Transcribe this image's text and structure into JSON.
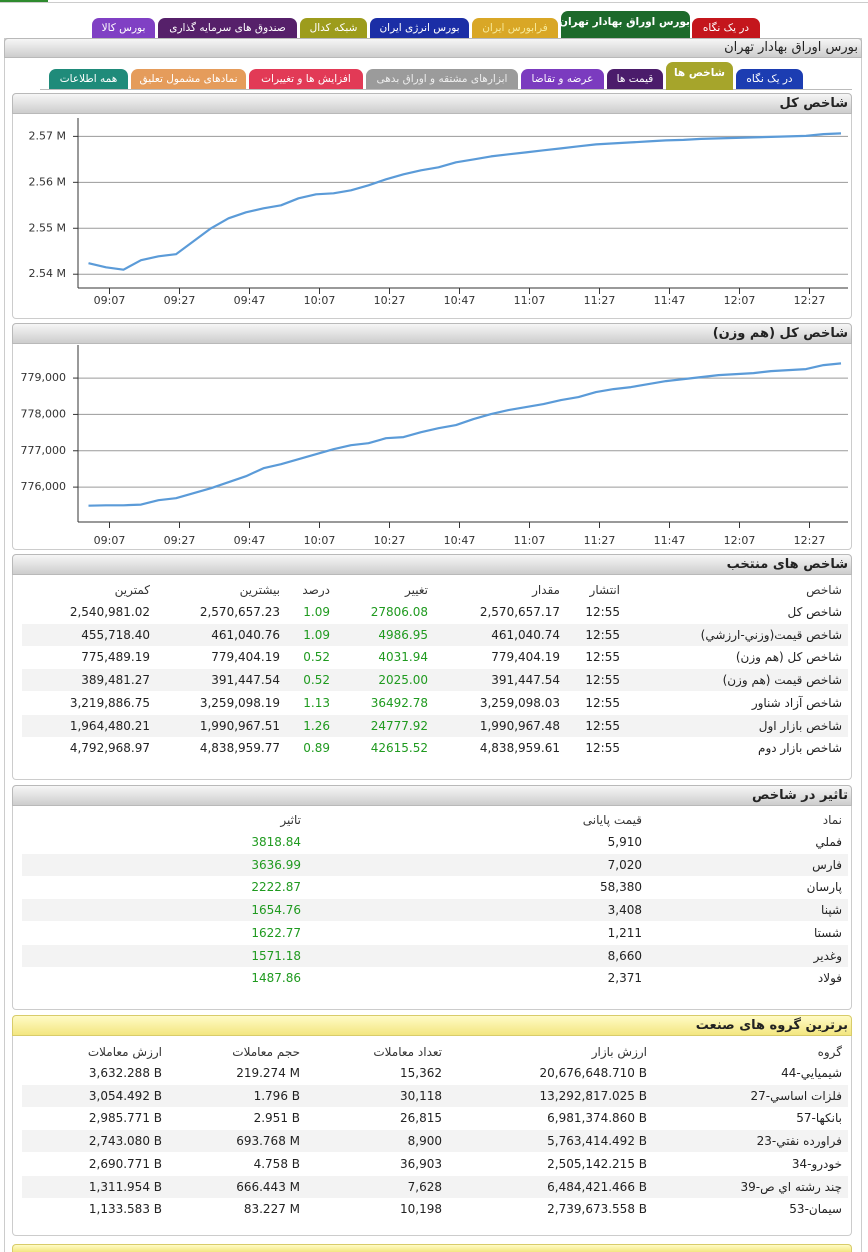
{
  "top_tabs": [
    "در یک نگاه",
    "بورس اوراق بهادار تهران",
    "فرابورس ایران",
    "بورس انرژی ایران",
    "شبکه کدال",
    "صندوق های سرمایه گذاری",
    "بورس کالا"
  ],
  "header": {
    "title": "بورس اوراق بهادار تهران"
  },
  "sub_tabs": [
    "در یک نگاه",
    "شاخص ها",
    "قیمت ها",
    "عرضه و تقاضا",
    "ابزارهای مشتقه و اوراق بدهی",
    "افزایش ها و تغییرات",
    "نمادهای مشمول تعلیق",
    "همه اطلاعات"
  ],
  "chart_data": [
    {
      "type": "line",
      "title": "شاخص کل",
      "color": "#5b9bd8",
      "grid": true,
      "x": [
        "09:01",
        "09:06",
        "09:11",
        "09:16",
        "09:21",
        "09:26",
        "09:31",
        "09:36",
        "09:41",
        "09:46",
        "09:51",
        "09:56",
        "10:01",
        "10:06",
        "10:11",
        "10:16",
        "10:21",
        "10:26",
        "10:31",
        "10:36",
        "10:41",
        "10:46",
        "10:51",
        "10:56",
        "11:01",
        "11:06",
        "11:11",
        "11:16",
        "11:21",
        "11:26",
        "11:31",
        "11:36",
        "11:41",
        "11:46",
        "11:51",
        "11:56",
        "12:01",
        "12:06",
        "12:11",
        "12:16",
        "12:21",
        "12:26",
        "12:31",
        "12:36"
      ],
      "values": [
        2542400,
        2541500,
        2540981,
        2543040,
        2543910,
        2544350,
        2547170,
        2550000,
        2552170,
        2553480,
        2554350,
        2555000,
        2556520,
        2557390,
        2557610,
        2558260,
        2559350,
        2560650,
        2561740,
        2562610,
        2563260,
        2564350,
        2565000,
        2565650,
        2566090,
        2566520,
        2566960,
        2567390,
        2567830,
        2568260,
        2568480,
        2568700,
        2568910,
        2569130,
        2569240,
        2569460,
        2569570,
        2569670,
        2569780,
        2569890,
        2570000,
        2570110,
        2570500,
        2570657
      ],
      "xlim": [
        "08:58",
        "12:38"
      ],
      "xticks": [
        "09:07",
        "09:27",
        "09:47",
        "10:07",
        "10:27",
        "10:47",
        "11:07",
        "11:27",
        "11:47",
        "12:07",
        "12:27"
      ],
      "ylim": [
        2537000,
        2574000
      ],
      "yticks": [
        {
          "value": 2540000,
          "label": "2.54 M"
        },
        {
          "value": 2550000,
          "label": "2.55 M"
        },
        {
          "value": 2560000,
          "label": "2.56 M"
        },
        {
          "value": 2570000,
          "label": "2.57 M"
        }
      ]
    },
    {
      "type": "line",
      "title": "شاخص کل (هم وزن)",
      "color": "#5b9bd8",
      "grid": true,
      "x": [
        "09:01",
        "09:06",
        "09:11",
        "09:16",
        "09:21",
        "09:26",
        "09:31",
        "09:36",
        "09:41",
        "09:46",
        "09:51",
        "09:56",
        "10:01",
        "10:06",
        "10:11",
        "10:16",
        "10:21",
        "10:26",
        "10:31",
        "10:36",
        "10:41",
        "10:46",
        "10:51",
        "10:56",
        "11:01",
        "11:06",
        "11:11",
        "11:16",
        "11:21",
        "11:26",
        "11:31",
        "11:36",
        "11:41",
        "11:46",
        "11:51",
        "11:56",
        "12:01",
        "12:06",
        "12:11",
        "12:16",
        "12:21",
        "12:26",
        "12:31",
        "12:36"
      ],
      "values": [
        775489,
        775500,
        775500,
        775520,
        775639,
        775694,
        775832,
        775970,
        776135,
        776300,
        776520,
        776631,
        776769,
        776906,
        777044,
        777154,
        777209,
        777347,
        777375,
        777512,
        777622,
        777705,
        777870,
        778008,
        778118,
        778201,
        778284,
        778394,
        778477,
        778614,
        778697,
        778752,
        778835,
        778917,
        778972,
        779028,
        779083,
        779110,
        779138,
        779193,
        779220,
        779248,
        779358,
        779404
      ],
      "xlim": [
        "08:58",
        "12:38"
      ],
      "xticks": [
        "09:07",
        "09:27",
        "09:47",
        "10:07",
        "10:27",
        "10:47",
        "11:07",
        "11:27",
        "11:47",
        "12:07",
        "12:27"
      ],
      "ylim": [
        775040,
        779910
      ],
      "yticks": [
        {
          "value": 776000,
          "label": "776,000"
        },
        {
          "value": 777000,
          "label": "777,000"
        },
        {
          "value": 778000,
          "label": "778,000"
        },
        {
          "value": 779000,
          "label": "779,000"
        }
      ]
    }
  ],
  "selected_indices": {
    "title": "شاخص های منتخب",
    "columns": [
      "شاخص",
      "انتشار",
      "مقدار",
      "تغییر",
      "درصد",
      "بیشترین",
      "کمترین"
    ],
    "rows": [
      [
        "شاخص كل",
        "12:55",
        "2,570,657.17",
        "27806.08",
        "1.09",
        "2,570,657.23",
        "2,540,981.02"
      ],
      [
        "شاخص قيمت(وزني-ارزشي)",
        "12:55",
        "461,040.74",
        "4986.95",
        "1.09",
        "461,040.76",
        "455,718.40"
      ],
      [
        "شاخص كل (هم وزن)",
        "12:55",
        "779,404.19",
        "4031.94",
        "0.52",
        "779,404.19",
        "775,489.19"
      ],
      [
        "شاخص قيمت (هم وزن)",
        "12:55",
        "391,447.54",
        "2025.00",
        "0.52",
        "391,447.54",
        "389,481.27"
      ],
      [
        "شاخص آزاد شناور",
        "12:55",
        "3,259,098.03",
        "36492.78",
        "1.13",
        "3,259,098.19",
        "3,219,886.75"
      ],
      [
        "شاخص بازار اول",
        "12:55",
        "1,990,967.48",
        "24777.92",
        "1.26",
        "1,990,967.51",
        "1,964,480.21"
      ],
      [
        "شاخص بازار دوم",
        "12:55",
        "4,838,959.61",
        "42615.52",
        "0.89",
        "4,838,959.77",
        "4,792,968.97"
      ]
    ]
  },
  "index_impact": {
    "title": "تاثیر در شاخص",
    "columns": [
      "نماد",
      "قیمت پایانی",
      "تاثیر"
    ],
    "rows": [
      [
        "فملي",
        "5,910",
        "3818.84"
      ],
      [
        "فارس",
        "7,020",
        "3636.99"
      ],
      [
        "پارسان",
        "58,380",
        "2222.87"
      ],
      [
        "شپنا",
        "3,408",
        "1654.76"
      ],
      [
        "شستا",
        "1,211",
        "1622.77"
      ],
      [
        "وغدير",
        "8,660",
        "1571.18"
      ],
      [
        "فولاد",
        "2,371",
        "1487.86"
      ]
    ]
  },
  "top_industry_groups": {
    "title": "برترین گروه های صنعت",
    "columns": [
      "گروه",
      "ارزش بازار",
      "تعداد معاملات",
      "حجم معاملات",
      "ارزش معاملات"
    ],
    "rows": [
      [
        "44-شيميايي",
        "20,676,648.710 B",
        "15,362",
        "219.274 M",
        "3,632.288 B"
      ],
      [
        "27-فلزات اساسي",
        "13,292,817.025 B",
        "30,118",
        "1.796 B",
        "3,054.492 B"
      ],
      [
        "57-بانكها",
        "6,981,374.860 B",
        "26,815",
        "2.951 B",
        "2,985.771 B"
      ],
      [
        "23-فراورده نفتي",
        "5,763,414.492 B",
        "8,900",
        "693.768 M",
        "2,743.080 B"
      ],
      [
        "34-خودرو",
        "2,505,142.215 B",
        "36,903",
        "4.758 B",
        "2,690.771 B"
      ],
      [
        "39-چند رشته اي ص",
        "6,484,421.466 B",
        "7,628",
        "666.443 M",
        "1,311.954 B"
      ],
      [
        "53-سيمان",
        "2,739,673.558 B",
        "10,198",
        "83.227 M",
        "1,133.583 B"
      ]
    ]
  }
}
